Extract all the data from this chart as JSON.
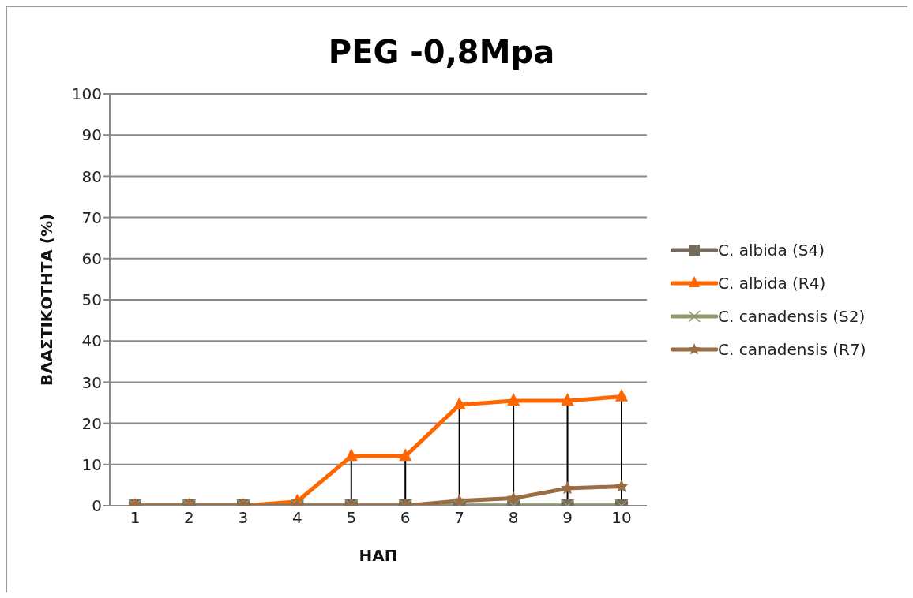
{
  "chart_data": {
    "type": "line",
    "title": "PEG -0,8Mpa",
    "xlabel": "ΗΑΠ",
    "ylabel": "ΒΛΑΣΤΙΚΟΤΗΤΑ (%)",
    "categories": [
      "1",
      "2",
      "3",
      "4",
      "5",
      "6",
      "7",
      "8",
      "9",
      "10"
    ],
    "ylim": [
      0,
      100
    ],
    "yticks": [
      0,
      10,
      20,
      30,
      40,
      50,
      60,
      70,
      80,
      90,
      100
    ],
    "grid": "y",
    "legend": "right",
    "series": [
      {
        "name": "C. albida (S4)",
        "color": "#756a5c",
        "marker": "square",
        "values": [
          0,
          0,
          0,
          0,
          0,
          0,
          0,
          0,
          0,
          0
        ]
      },
      {
        "name": "C. albida (R4)",
        "color": "#ff6600",
        "marker": "triangle",
        "values": [
          0,
          0,
          0,
          1,
          12,
          12,
          24.5,
          25.5,
          25.5,
          26.5
        ],
        "errors": [
          null,
          null,
          null,
          [
            0,
            1
          ],
          [
            0,
            12
          ],
          [
            0,
            12
          ],
          [
            0,
            24.5
          ],
          [
            0,
            25.5
          ],
          [
            0,
            25.5
          ],
          [
            0,
            26.5
          ]
        ]
      },
      {
        "name": "C. canadensis (S2)",
        "color": "#8f9a6a",
        "marker": "cross",
        "values": [
          0,
          0,
          0,
          0,
          0,
          0,
          0,
          0,
          0,
          0
        ]
      },
      {
        "name": "C. canadensis (R7)",
        "color": "#9b6d44",
        "marker": "star",
        "values": [
          0,
          0,
          0,
          0,
          0,
          0,
          1.2,
          1.8,
          4.2,
          4.7
        ]
      }
    ]
  }
}
